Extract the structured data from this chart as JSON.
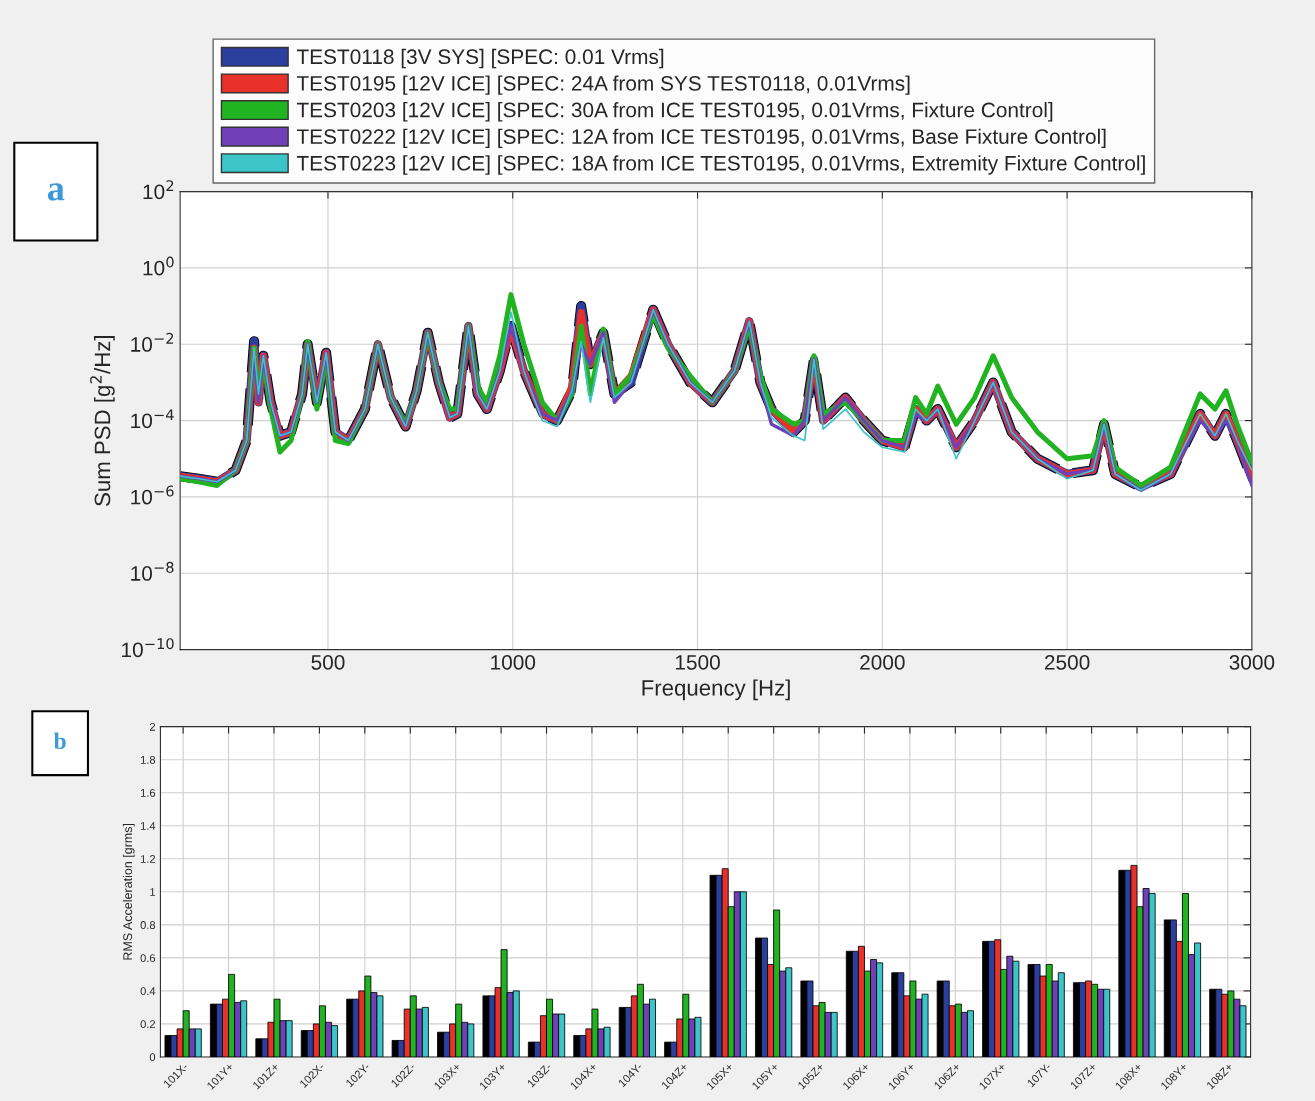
{
  "chart_data": [
    {
      "type": "line",
      "title": "a",
      "xlabel": "Frequency [Hz]",
      "ylabel": "Sum PSD [g$^{2}$/Hz]",
      "log": "y",
      "grid": true,
      "legend": "top",
      "marker": "none",
      "xlim": [
        100,
        3000
      ],
      "xticks": [
        500,
        1000,
        1500,
        2000,
        2500,
        3000
      ],
      "ylim": [
        1e-10,
        100
      ],
      "yticks": [
        {
          "value": 1e-10,
          "label": "10$^{−10}$"
        },
        {
          "value": 1e-08,
          "label": "10$^{−8}$"
        },
        {
          "value": 1e-06,
          "label": "10$^{−6}$"
        },
        {
          "value": 0.0001,
          "label": "10$^{−4}$"
        },
        {
          "value": 0.01,
          "label": "10$^{−2}$"
        },
        {
          "value": 1,
          "label": "10$^{0}$"
        },
        {
          "value": 100,
          "label": "10$^{2}$"
        }
      ],
      "x": [
        100,
        150,
        200,
        250,
        280,
        300,
        312,
        325,
        345,
        370,
        400,
        430,
        445,
        470,
        495,
        520,
        555,
        600,
        635,
        670,
        710,
        740,
        770,
        800,
        830,
        850,
        880,
        905,
        930,
        965,
        995,
        1030,
        1080,
        1120,
        1160,
        1185,
        1210,
        1245,
        1275,
        1320,
        1380,
        1420,
        1480,
        1540,
        1600,
        1640,
        1670,
        1700,
        1760,
        1790,
        1815,
        1840,
        1900,
        1950,
        2000,
        2060,
        2090,
        2120,
        2150,
        2200,
        2250,
        2300,
        2350,
        2420,
        2500,
        2570,
        2600,
        2630,
        2700,
        2780,
        2860,
        2900,
        2930,
        2960,
        3000
      ],
      "series": [
        {
          "color": "#000000",
          "line_style": "dashed",
          "values": [
            3.5e-06,
            3e-06,
            2.5e-06,
            5e-06,
            3e-05,
            0.012,
            0.0003,
            0.005,
            0.0003,
            4e-05,
            5e-05,
            0.0005,
            0.01,
            0.0003,
            0.006,
            5e-05,
            3e-05,
            0.0002,
            0.01,
            0.0004,
            7e-05,
            0.0006,
            0.02,
            0.001,
            0.00012,
            0.00015,
            0.03,
            0.0005,
            0.0002,
            0.002,
            0.03,
            0.002,
            0.00015,
            0.0001,
            0.0006,
            0.1,
            0.003,
            0.02,
            0.0005,
            0.001,
            0.08,
            0.01,
            0.001,
            0.0003,
            0.002,
            0.04,
            0.001,
            0.0002,
            5e-05,
            0.0001,
            0.004,
            0.0001,
            0.0004,
            0.0001,
            3e-05,
            2e-05,
            0.0002,
            0.0001,
            0.0002,
            2e-05,
            0.0001,
            0.001,
            5e-05,
            1e-05,
            4e-06,
            5e-06,
            8e-05,
            4e-06,
            1.8e-06,
            4e-06,
            0.00015,
            4e-05,
            0.00015,
            3e-05,
            3e-06
          ]
        },
        {
          "name": "TEST0118 [3V SYS] [SPEC: 0.01 Vrms]",
          "color": "#2b3f9e",
          "line_style": "solid",
          "values": [
            3.5e-06,
            3e-06,
            2.5e-06,
            5e-06,
            3e-05,
            0.012,
            0.0003,
            0.005,
            0.0003,
            4e-05,
            5e-05,
            0.0005,
            0.01,
            0.0003,
            0.006,
            5e-05,
            3e-05,
            0.0002,
            0.01,
            0.0004,
            7e-05,
            0.0006,
            0.02,
            0.001,
            0.00012,
            0.00015,
            0.03,
            0.0005,
            0.0002,
            0.002,
            0.03,
            0.002,
            0.00015,
            0.0001,
            0.0006,
            0.1,
            0.003,
            0.02,
            0.0005,
            0.001,
            0.08,
            0.01,
            0.001,
            0.0003,
            0.002,
            0.04,
            0.001,
            0.0002,
            5e-05,
            0.0001,
            0.004,
            0.0001,
            0.0004,
            0.0001,
            3e-05,
            2e-05,
            0.0002,
            0.0001,
            0.0002,
            2e-05,
            0.0001,
            0.001,
            5e-05,
            1e-05,
            4e-06,
            5e-06,
            8e-05,
            4e-06,
            1.8e-06,
            4e-06,
            0.00015,
            4e-05,
            0.00015,
            3e-05,
            3e-06
          ]
        },
        {
          "name": "TEST0195 [12V ICE] [SPEC: 24A from SYS TEST0118, 0.01Vrms]",
          "color": "#e8312a",
          "line_style": "solid",
          "values": [
            3.5e-06,
            3e-06,
            2.5e-06,
            5e-06,
            3e-05,
            0.008,
            0.0003,
            0.005,
            0.0003,
            4e-05,
            5e-05,
            0.0005,
            0.01,
            0.0003,
            0.006,
            5e-05,
            3e-05,
            0.0002,
            0.01,
            0.0004,
            7e-05,
            0.0006,
            0.02,
            0.001,
            0.00012,
            0.00015,
            0.03,
            0.0005,
            0.0002,
            0.002,
            0.025,
            0.002,
            0.00015,
            0.0001,
            0.0008,
            0.07,
            0.003,
            0.02,
            0.0005,
            0.0015,
            0.08,
            0.01,
            0.001,
            0.0003,
            0.002,
            0.04,
            0.001,
            0.0002,
            5e-05,
            0.0001,
            0.004,
            0.0001,
            0.0004,
            0.0001,
            3e-05,
            2e-05,
            0.0002,
            0.0001,
            0.0002,
            2e-05,
            0.0001,
            0.001,
            5e-05,
            1e-05,
            4e-06,
            5e-06,
            8e-05,
            4e-06,
            1.8e-06,
            4e-06,
            0.00015,
            4e-05,
            0.00015,
            3e-05,
            3e-06
          ]
        },
        {
          "name": "TEST0203 [12V ICE] [SPEC: 30A from ICE TEST0195, 0.01Vrms, Fixture Control]",
          "color": "#22b322",
          "line_style": "solid",
          "values": [
            3e-06,
            2.5e-06,
            2e-06,
            5e-06,
            3e-05,
            0.008,
            0.0004,
            0.004,
            0.0002,
            1.5e-05,
            3e-05,
            0.0005,
            0.012,
            0.0002,
            0.005,
            3e-05,
            2.5e-05,
            0.0002,
            0.01,
            0.0004,
            8e-05,
            0.0006,
            0.02,
            0.001,
            0.0002,
            0.0002,
            0.03,
            0.0008,
            0.0003,
            0.005,
            0.2,
            0.01,
            0.0003,
            0.0001,
            0.0005,
            0.03,
            0.0005,
            0.025,
            0.0005,
            0.0015,
            0.06,
            0.008,
            0.0015,
            0.0003,
            0.002,
            0.03,
            0.0015,
            0.0002,
            8e-05,
            0.0001,
            0.005,
            0.00015,
            0.0003,
            0.0001,
            3e-05,
            3e-05,
            0.0004,
            0.00015,
            0.0008,
            8e-05,
            0.0004,
            0.005,
            0.0004,
            5e-05,
            1e-05,
            1.2e-05,
            0.0001,
            6e-06,
            2e-06,
            6e-06,
            0.0005,
            0.0002,
            0.0006,
            8e-05,
            8e-06
          ]
        },
        {
          "name": "TEST0222 [12V ICE] [SPEC: 12A from ICE TEST0195, 0.01Vrms, Base Fixture Control]",
          "color": "#7040b8",
          "line_style": "solid",
          "values": [
            3.5e-06,
            3e-06,
            2.5e-06,
            5e-06,
            3e-05,
            0.006,
            0.0003,
            0.005,
            0.0003,
            4e-05,
            5e-05,
            0.0005,
            0.01,
            0.0003,
            0.006,
            5e-05,
            3e-05,
            0.0002,
            0.01,
            0.0004,
            7e-05,
            0.0006,
            0.02,
            0.001,
            0.00012,
            0.00015,
            0.03,
            0.0005,
            0.0002,
            0.002,
            0.03,
            0.002,
            0.00015,
            0.0001,
            0.0006,
            0.01,
            0.003,
            0.02,
            0.0003,
            0.001,
            0.08,
            0.01,
            0.001,
            0.0003,
            0.002,
            0.04,
            0.001,
            8e-05,
            4e-05,
            0.0001,
            0.004,
            0.0001,
            0.0004,
            0.0001,
            3e-05,
            2e-05,
            0.00015,
            0.0001,
            0.0002,
            2e-05,
            0.0001,
            0.001,
            5e-05,
            1e-05,
            4e-06,
            5e-06,
            8e-05,
            4e-06,
            1.5e-06,
            4e-06,
            0.0001,
            4e-05,
            0.0001,
            3e-05,
            2e-06
          ]
        },
        {
          "name": "TEST0223 [12V ICE] [SPEC: 18A from ICE TEST0195, 0.01Vrms, Extremity Fixture Control]",
          "color": "#3cc4c8",
          "line_style": "solid",
          "values": [
            3.5e-06,
            3e-06,
            2.5e-06,
            5e-06,
            3e-05,
            0.008,
            0.0005,
            0.005,
            0.0003,
            4e-05,
            5e-05,
            0.0005,
            0.01,
            0.0003,
            0.006,
            5e-05,
            3e-05,
            0.0002,
            0.01,
            0.0004,
            7e-05,
            0.0006,
            0.02,
            0.001,
            0.00012,
            0.00015,
            0.03,
            0.0005,
            0.0002,
            0.002,
            0.07,
            0.002,
            0.0001,
            7e-05,
            0.0006,
            0.012,
            0.0003,
            0.015,
            0.0004,
            0.001,
            0.08,
            0.01,
            0.001,
            0.0003,
            0.002,
            0.04,
            0.001,
            0.00012,
            4e-05,
            3e-05,
            0.004,
            6e-05,
            0.0002,
            5e-05,
            2e-05,
            1.5e-05,
            0.0002,
            0.0001,
            0.0002,
            1e-05,
            0.0001,
            0.001,
            5e-05,
            1e-05,
            3e-06,
            5e-06,
            8e-05,
            4e-06,
            1.5e-06,
            4e-06,
            0.00015,
            4e-05,
            0.00015,
            3e-05,
            5e-06
          ]
        }
      ]
    },
    {
      "type": "bar",
      "title": "b",
      "ylabel": "RMS Acceleration [grms]",
      "grid": true,
      "ylim": [
        0,
        2
      ],
      "yticks": [
        0,
        0.2,
        0.4,
        0.6,
        0.8,
        1,
        1.2,
        1.4,
        1.6,
        1.8,
        2
      ],
      "categories": [
        "101X-",
        "101Y+",
        "101Z+",
        "102X-",
        "102Y-",
        "102Z-",
        "103X+",
        "103Y+",
        "103Z-",
        "104X+",
        "104Y-",
        "104Z+",
        "105X+",
        "105Y+",
        "105Z+",
        "106X+",
        "106Y+",
        "106Z+",
        "107X+",
        "107Y-",
        "107Z+",
        "108X+",
        "108Y+",
        "108Z+"
      ],
      "series": [
        {
          "color": "#000000",
          "values": [
            0.13,
            0.32,
            0.11,
            0.16,
            0.35,
            0.1,
            0.15,
            0.37,
            0.09,
            0.13,
            0.3,
            0.09,
            1.1,
            0.72,
            0.46,
            0.64,
            0.51,
            0.46,
            0.7,
            0.56,
            0.45,
            1.13,
            0.83,
            0.41
          ]
        },
        {
          "color": "#2b3f9e",
          "values": [
            0.13,
            0.32,
            0.11,
            0.16,
            0.35,
            0.1,
            0.15,
            0.37,
            0.09,
            0.13,
            0.3,
            0.09,
            1.1,
            0.72,
            0.46,
            0.64,
            0.51,
            0.46,
            0.7,
            0.56,
            0.45,
            1.13,
            0.83,
            0.41
          ]
        },
        {
          "color": "#e8312a",
          "values": [
            0.17,
            0.35,
            0.21,
            0.2,
            0.4,
            0.29,
            0.2,
            0.42,
            0.25,
            0.17,
            0.37,
            0.23,
            1.14,
            0.56,
            0.31,
            0.67,
            0.37,
            0.31,
            0.71,
            0.49,
            0.46,
            1.16,
            0.7,
            0.38
          ]
        },
        {
          "color": "#22b322",
          "values": [
            0.28,
            0.5,
            0.35,
            0.31,
            0.49,
            0.37,
            0.32,
            0.65,
            0.35,
            0.29,
            0.44,
            0.38,
            0.91,
            0.89,
            0.33,
            0.52,
            0.46,
            0.32,
            0.53,
            0.56,
            0.44,
            0.91,
            0.99,
            0.4
          ]
        },
        {
          "color": "#7040b8",
          "values": [
            0.17,
            0.33,
            0.22,
            0.21,
            0.39,
            0.29,
            0.21,
            0.39,
            0.26,
            0.17,
            0.32,
            0.23,
            1.0,
            0.52,
            0.27,
            0.59,
            0.35,
            0.27,
            0.61,
            0.46,
            0.41,
            1.02,
            0.62,
            0.35
          ]
        },
        {
          "color": "#3cc4c8",
          "values": [
            0.17,
            0.34,
            0.22,
            0.19,
            0.37,
            0.3,
            0.2,
            0.4,
            0.26,
            0.18,
            0.35,
            0.24,
            1.0,
            0.54,
            0.27,
            0.57,
            0.38,
            0.28,
            0.58,
            0.51,
            0.41,
            0.99,
            0.69,
            0.31
          ]
        }
      ]
    }
  ]
}
